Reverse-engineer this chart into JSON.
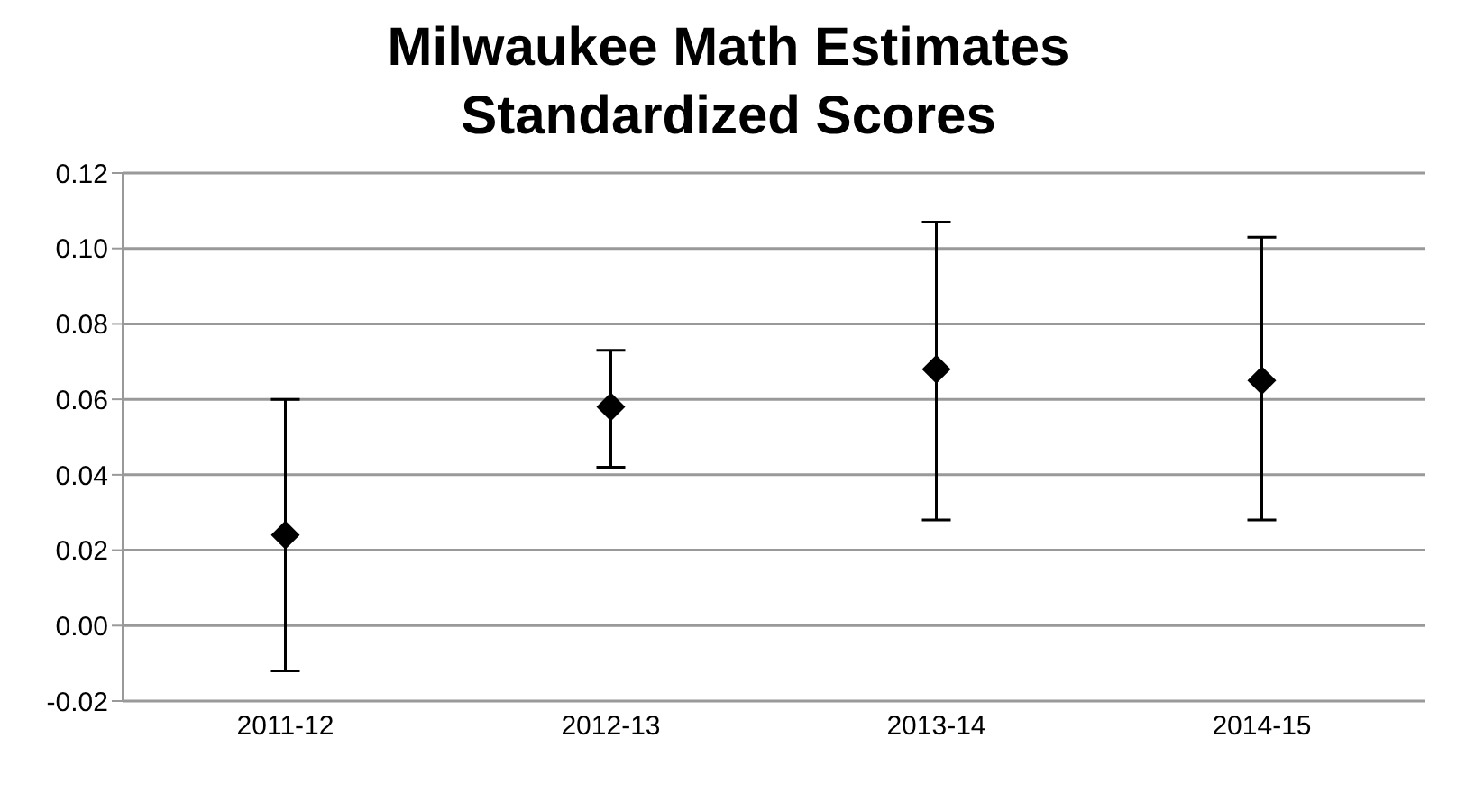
{
  "chart_data": {
    "type": "scatter",
    "title": "Milwaukee Math Estimates\nStandardized Scores",
    "categories": [
      "2011-12",
      "2012-13",
      "2013-14",
      "2014-15"
    ],
    "values": [
      0.024,
      0.058,
      0.068,
      0.065
    ],
    "errors": [
      [
        -0.012,
        0.06
      ],
      [
        0.042,
        0.073
      ],
      [
        0.028,
        0.107
      ],
      [
        0.028,
        0.103
      ]
    ],
    "color": "#000000",
    "marker": "diamond",
    "ylim": [
      -0.02,
      0.12
    ],
    "yticks": [
      {
        "value": -0.02,
        "label": "-0.02"
      },
      {
        "value": 0,
        "label": "0.00"
      },
      {
        "value": 0.02,
        "label": "0.02"
      },
      {
        "value": 0.04,
        "label": "0.04"
      },
      {
        "value": 0.06,
        "label": "0.06"
      },
      {
        "value": 0.08,
        "label": "0.08"
      },
      {
        "value": 0.1,
        "label": "0.10"
      },
      {
        "value": 0.12,
        "label": "0.12"
      }
    ],
    "grid": "y"
  }
}
